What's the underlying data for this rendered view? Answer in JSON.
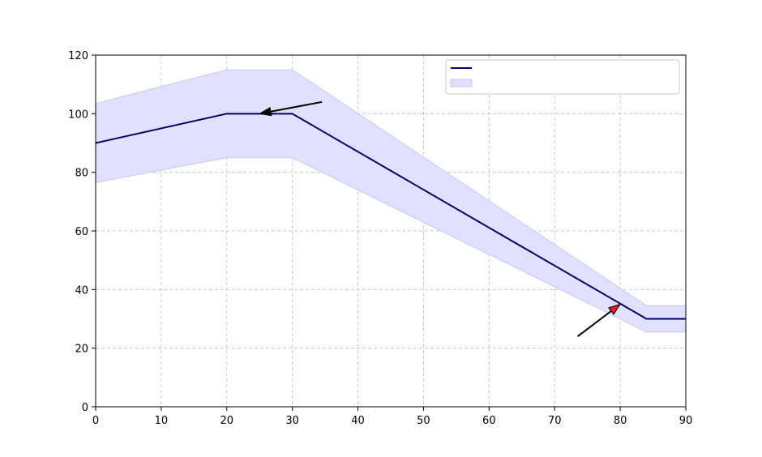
{
  "chart_data": {
    "type": "line",
    "title": "",
    "xlabel": "",
    "ylabel": "",
    "xlim": [
      0,
      90
    ],
    "ylim": [
      0,
      120
    ],
    "x_ticks": [
      0,
      10,
      20,
      30,
      40,
      50,
      60,
      70,
      80,
      90
    ],
    "y_ticks": [
      0,
      20,
      40,
      60,
      80,
      100,
      120
    ],
    "grid": true,
    "legend_position": "top-right",
    "series": [
      {
        "kind": "line",
        "color": "#000066",
        "x": [
          0,
          20,
          30,
          84,
          90
        ],
        "y": [
          90,
          100,
          100,
          30,
          30
        ]
      }
    ],
    "band": {
      "kind": "band",
      "color": "#e0e0ff",
      "edge_color": "#c8c8f0",
      "x": [
        0,
        20,
        30,
        84,
        90
      ],
      "upper": [
        103.5,
        115,
        115,
        34.5,
        34.5
      ],
      "lower": [
        76.5,
        85,
        85,
        25.5,
        25.5
      ]
    },
    "annotations": [
      {
        "from": [
          34.5,
          104
        ],
        "to": [
          25,
          100
        ],
        "color": "#000000"
      },
      {
        "from": [
          73.5,
          24
        ],
        "to": [
          80,
          35
        ],
        "color": "#e02020"
      }
    ]
  }
}
